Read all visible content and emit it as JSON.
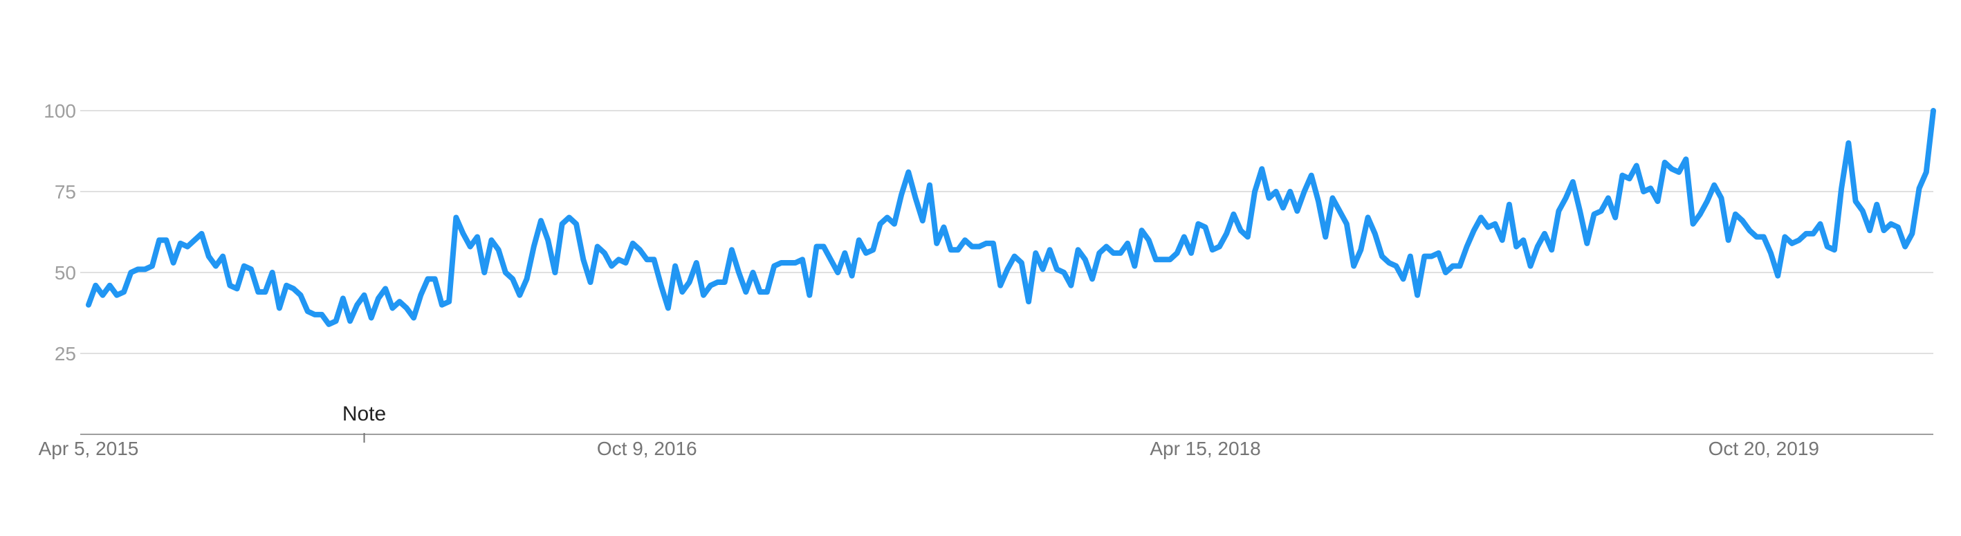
{
  "chart_data": {
    "type": "line",
    "title": "",
    "xlabel": "",
    "ylabel": "",
    "ylim": [
      0,
      100
    ],
    "yticks": [
      25,
      50,
      75,
      100
    ],
    "grid": true,
    "line_color": "#2196f3",
    "grid_color": "#e0e0e0",
    "axis_color": "#9e9e9e",
    "x_start": "Apr 5, 2015",
    "x_end": "Mar 29, 2020",
    "x_tick_labels": [
      {
        "label": "Apr 5, 2015",
        "index": 0
      },
      {
        "label": "Oct 9, 2016",
        "index": 79
      },
      {
        "label": "Apr 15, 2018",
        "index": 158
      },
      {
        "label": "Oct 20, 2019",
        "index": 237
      }
    ],
    "annotations": [
      {
        "label": "Note",
        "index": 39
      }
    ],
    "series": [
      {
        "values": [
          40,
          46,
          43,
          46,
          43,
          44,
          50,
          51,
          51,
          52,
          60,
          60,
          53,
          59,
          58,
          60,
          62,
          55,
          52,
          55,
          46,
          45,
          52,
          51,
          44,
          44,
          50,
          39,
          46,
          45,
          43,
          38,
          37,
          37,
          34,
          35,
          42,
          35,
          40,
          43,
          36,
          42,
          45,
          39,
          41,
          39,
          36,
          43,
          48,
          48,
          40,
          41,
          67,
          62,
          58,
          61,
          50,
          60,
          57,
          50,
          48,
          43,
          48,
          58,
          66,
          60,
          50,
          65,
          67,
          65,
          54,
          47,
          58,
          56,
          52,
          54,
          53,
          59,
          57,
          54,
          54,
          46,
          39,
          52,
          44,
          47,
          53,
          43,
          46,
          47,
          47,
          57,
          50,
          44,
          50,
          44,
          44,
          52,
          53,
          53,
          53,
          54,
          43,
          58,
          58,
          54,
          50,
          56,
          49,
          60,
          56,
          57,
          65,
          67,
          65,
          74,
          81,
          73,
          66,
          77,
          59,
          64,
          57,
          57,
          60,
          58,
          58,
          59,
          59,
          46,
          51,
          55,
          53,
          41,
          56,
          51,
          57,
          51,
          50,
          46,
          57,
          54,
          48,
          56,
          58,
          56,
          56,
          59,
          52,
          63,
          60,
          54,
          54,
          54,
          56,
          61,
          56,
          65,
          64,
          57,
          58,
          62,
          68,
          63,
          61,
          75,
          82,
          73,
          75,
          70,
          75,
          69,
          75,
          80,
          72,
          61,
          73,
          69,
          65,
          52,
          57,
          67,
          62,
          55,
          53,
          52,
          48,
          55,
          43,
          55,
          55,
          56,
          50,
          52,
          52,
          58,
          63,
          67,
          64,
          65,
          60,
          71,
          58,
          60,
          52,
          58,
          62,
          57,
          69,
          73,
          78,
          69,
          59,
          68,
          69,
          73,
          67,
          80,
          79,
          83,
          75,
          76,
          72,
          84,
          82,
          81,
          85,
          65,
          68,
          72,
          77,
          73,
          60,
          68,
          66,
          63,
          61,
          61,
          56,
          49,
          61,
          59,
          60,
          62,
          62,
          65,
          58,
          57,
          76,
          90,
          72,
          69,
          63,
          71,
          63,
          65,
          64,
          58,
          62,
          76,
          81,
          100
        ]
      }
    ]
  }
}
